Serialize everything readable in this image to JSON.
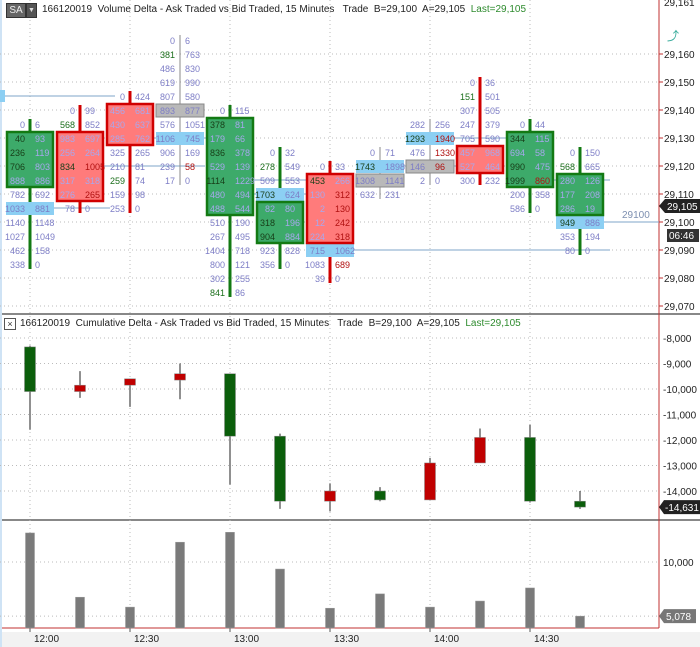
{
  "price_panel": {
    "instrument": "166120019",
    "title": "Volume Delta - Ask Traded vs Bid Traded, 15 Minutes",
    "trade_label": "Trade",
    "bid": "B=29,100",
    "ask": "A=29,105",
    "last": "Last=29,105",
    "sa_button": "SA",
    "dropdown_icon": "chevron-down-icon",
    "axis_labels": [
      "29,070",
      "29,080",
      "29,090",
      "29,100",
      "29,110",
      "29,120",
      "29,130",
      "29,140",
      "29,150",
      "29,160"
    ],
    "axis_top_partial": "29,161",
    "last_price_tag": "29,105",
    "timer_tag": "06:46",
    "level_label": "29100",
    "colors": {
      "green_fill": "#3daa6a",
      "green_border": "#137a13",
      "red_fill": "#ff7b7b",
      "red_border": "#d00000",
      "highlight": "#8ccff3",
      "gray": "#b9b9b9",
      "text": "#7d7dc6"
    },
    "bars": [
      {
        "time": "12:00",
        "type": "green",
        "body": [
          29130,
          29115
        ],
        "rows": [
          [
            29135,
            "0",
            "6",
            "n",
            "n"
          ],
          [
            29130,
            "40",
            "93",
            "d",
            "n"
          ],
          [
            29125,
            "236",
            "119",
            "d",
            "n"
          ],
          [
            29120,
            "706",
            "803",
            "d",
            "n"
          ],
          [
            29115,
            "888",
            "886",
            "n",
            "n"
          ],
          [
            29110,
            "782",
            "692",
            "n",
            "n"
          ],
          [
            29105,
            "1033",
            "881",
            "n",
            "n",
            "hl"
          ],
          [
            29100,
            "1140",
            "1148",
            "n",
            "n"
          ],
          [
            29095,
            "1027",
            "1049",
            "n",
            "n"
          ],
          [
            29090,
            "462",
            "158",
            "n",
            "n"
          ],
          [
            29085,
            "338",
            "0",
            "n",
            "n"
          ]
        ]
      },
      {
        "time": "12:15",
        "type": "red",
        "body": [
          29130,
          29110
        ],
        "rows": [
          [
            29140,
            "0",
            "99",
            "n",
            "n"
          ],
          [
            29135,
            "568",
            "852",
            "g",
            "n"
          ],
          [
            29130,
            "983",
            "697",
            "n",
            "n"
          ],
          [
            29125,
            "256",
            "264",
            "n",
            "n"
          ],
          [
            29120,
            "834",
            "1005",
            "d",
            "r"
          ],
          [
            29115,
            "317",
            "318",
            "n",
            "n"
          ],
          [
            29110,
            "276",
            "265",
            "n",
            "r"
          ],
          [
            29105,
            "78",
            "0",
            "n",
            "n"
          ]
        ]
      },
      {
        "time": "12:30",
        "type": "red",
        "body": [
          29140,
          29130
        ],
        "rows": [
          [
            29145,
            "0",
            "424",
            "n",
            "n"
          ],
          [
            29140,
            "456",
            "681",
            "n",
            "n"
          ],
          [
            29135,
            "430",
            "637",
            "n",
            "n"
          ],
          [
            29130,
            "285",
            "762",
            "n",
            "n"
          ],
          [
            29125,
            "325",
            "265",
            "n",
            "n"
          ],
          [
            29120,
            "210",
            "81",
            "n",
            "n"
          ],
          [
            29115,
            "259",
            "74",
            "g",
            "n"
          ],
          [
            29110,
            "159",
            "98",
            "n",
            "n"
          ],
          [
            29105,
            "253",
            "0",
            "n",
            "n"
          ]
        ]
      },
      {
        "time": "12:45",
        "type": "gray",
        "body": [
          29140,
          29140
        ],
        "rows": [
          [
            29165,
            "0",
            "6",
            "n",
            "n"
          ],
          [
            29160,
            "381",
            "763",
            "g",
            "n"
          ],
          [
            29155,
            "486",
            "830",
            "n",
            "n"
          ],
          [
            29150,
            "619",
            "990",
            "n",
            "n"
          ],
          [
            29145,
            "807",
            "580",
            "n",
            "n"
          ],
          [
            29140,
            "893",
            "877",
            "n",
            "n",
            "gy"
          ],
          [
            29135,
            "576",
            "1051",
            "n",
            "n"
          ],
          [
            29130,
            "1106",
            "745",
            "n",
            "n",
            "hl"
          ],
          [
            29125,
            "906",
            "169",
            "n",
            "n"
          ],
          [
            29120,
            "239",
            "58",
            "n",
            "r"
          ],
          [
            29115,
            "17",
            "0",
            "n",
            "n"
          ]
        ]
      },
      {
        "time": "13:00",
        "type": "green",
        "body": [
          29135,
          29105
        ],
        "rows": [
          [
            29140,
            "0",
            "115",
            "n",
            "n"
          ],
          [
            29135,
            "378",
            "81",
            "d",
            "n"
          ],
          [
            29130,
            "179",
            "66",
            "n",
            "n"
          ],
          [
            29125,
            "836",
            "378",
            "d",
            "n"
          ],
          [
            29120,
            "529",
            "139",
            "n",
            "n"
          ],
          [
            29115,
            "1114",
            "1229",
            "d",
            "n"
          ],
          [
            29110,
            "480",
            "494",
            "n",
            "n"
          ],
          [
            29105,
            "488",
            "544",
            "n",
            "n"
          ],
          [
            29100,
            "510",
            "190",
            "n",
            "n"
          ],
          [
            29095,
            "267",
            "495",
            "n",
            "n"
          ],
          [
            29090,
            "1404",
            "718",
            "n",
            "n"
          ],
          [
            29085,
            "800",
            "121",
            "n",
            "n"
          ],
          [
            29080,
            "302",
            "255",
            "n",
            "n"
          ],
          [
            29075,
            "841",
            "86",
            "g",
            "n"
          ]
        ]
      },
      {
        "time": "13:15",
        "type": "green",
        "body": [
          29105,
          29095
        ],
        "rows": [
          [
            29125,
            "0",
            "32",
            "n",
            "n"
          ],
          [
            29120,
            "278",
            "549",
            "g",
            "n"
          ],
          [
            29115,
            "509",
            "553",
            "n",
            "n"
          ],
          [
            29110,
            "1703",
            "624",
            "d",
            "n",
            "hl"
          ],
          [
            29105,
            "82",
            "80",
            "n",
            "n"
          ],
          [
            29100,
            "318",
            "196",
            "d",
            "n"
          ],
          [
            29095,
            "904",
            "884",
            "d",
            "n"
          ],
          [
            29090,
            "923",
            "828",
            "n",
            "n"
          ],
          [
            29085,
            "356",
            "0",
            "n",
            "n"
          ]
        ]
      },
      {
        "time": "13:30",
        "type": "red",
        "body": [
          29115,
          29095
        ],
        "rows": [
          [
            29120,
            "0",
            "33",
            "n",
            "n"
          ],
          [
            29115,
            "453",
            "266",
            "d",
            "n"
          ],
          [
            29110,
            "130",
            "312",
            "n",
            "r"
          ],
          [
            29105,
            "2",
            "130",
            "n",
            "r"
          ],
          [
            29100,
            "12",
            "242",
            "n",
            "r"
          ],
          [
            29095,
            "224",
            "318",
            "n",
            "r"
          ],
          [
            29090,
            "715",
            "1062",
            "n",
            "n",
            "hl"
          ],
          [
            29085,
            "1083",
            "689",
            "n",
            "r"
          ],
          [
            29080,
            "39",
            "0",
            "n",
            "n"
          ]
        ]
      },
      {
        "time": "13:45",
        "type": "gray",
        "body": [
          29115,
          29115
        ],
        "rows": [
          [
            29125,
            "0",
            "71",
            "n",
            "n"
          ],
          [
            29120,
            "1743",
            "1898",
            "d",
            "n",
            "hl"
          ],
          [
            29115,
            "1308",
            "1141",
            "n",
            "n",
            "gy"
          ],
          [
            29110,
            "632",
            "231",
            "n",
            "n"
          ]
        ]
      },
      {
        "time": "14:00",
        "type": "gray",
        "body": [
          29120,
          29120
        ],
        "rows": [
          [
            29135,
            "282",
            "256",
            "n",
            "n"
          ],
          [
            29130,
            "1293",
            "1940",
            "d",
            "r",
            "hl"
          ],
          [
            29125,
            "476",
            "1330",
            "n",
            "r"
          ],
          [
            29120,
            "146",
            "96",
            "n",
            "r",
            "gy"
          ],
          [
            29115,
            "2",
            "0",
            "n",
            "n"
          ]
        ]
      },
      {
        "time": "14:15",
        "type": "red",
        "body": [
          29125,
          29120
        ],
        "rows": [
          [
            29150,
            "0",
            "36",
            "n",
            "n"
          ],
          [
            29145,
            "151",
            "501",
            "g",
            "n"
          ],
          [
            29140,
            "307",
            "505",
            "n",
            "n"
          ],
          [
            29135,
            "247",
            "379",
            "n",
            "n"
          ],
          [
            29130,
            "705",
            "590",
            "n",
            "n"
          ],
          [
            29125,
            "457",
            "968",
            "n",
            "n"
          ],
          [
            29120,
            "527",
            "464",
            "n",
            "n"
          ],
          [
            29115,
            "300",
            "232",
            "n",
            "n"
          ]
        ]
      },
      {
        "time": "14:30",
        "type": "green",
        "body": [
          29130,
          29115
        ],
        "rows": [
          [
            29135,
            "0",
            "44",
            "n",
            "n"
          ],
          [
            29130,
            "344",
            "115",
            "d",
            "n"
          ],
          [
            29125,
            "694",
            "58",
            "n",
            "n"
          ],
          [
            29120,
            "990",
            "475",
            "d",
            "n"
          ],
          [
            29115,
            "1999",
            "860",
            "d",
            "r"
          ],
          [
            29110,
            "200",
            "358",
            "n",
            "n"
          ],
          [
            29105,
            "586",
            "0",
            "n",
            "n"
          ]
        ]
      },
      {
        "time": "14:45",
        "type": "green",
        "body": [
          29115,
          29105
        ],
        "rows": [
          [
            29125,
            "0",
            "150",
            "n",
            "n"
          ],
          [
            29120,
            "568",
            "665",
            "g",
            "n"
          ],
          [
            29115,
            "280",
            "126",
            "n",
            "n"
          ],
          [
            29110,
            "177",
            "208",
            "n",
            "n"
          ],
          [
            29105,
            "286",
            "19",
            "n",
            "n"
          ],
          [
            29100,
            "949",
            "886",
            "d",
            "n",
            "hl"
          ],
          [
            29095,
            "353",
            "194",
            "n",
            "n"
          ],
          [
            29090,
            "80",
            "0",
            "n",
            "n"
          ]
        ]
      }
    ]
  },
  "delta_panel": {
    "instrument": "166120019",
    "title": "Cumulative Delta - Ask Traded vs Bid Traded, 15 Minutes",
    "trade_label": "Trade",
    "bid": "B=29,100",
    "ask": "A=29,105",
    "last": "Last=29,105",
    "close_icon": "close-icon",
    "axis_labels": [
      "-8,000",
      "-9,000",
      "-10,000",
      "-11,000",
      "-12,000",
      "-13,000",
      "-14,000"
    ],
    "last_tag": "-14,631",
    "candles": [
      {
        "color": "green",
        "body": [
          -8350,
          -10100
        ],
        "high": -8300,
        "low": -11600
      },
      {
        "color": "red",
        "body": [
          -9850,
          -10100
        ],
        "high": -9300,
        "low": -10350
      },
      {
        "color": "red",
        "body": [
          -9600,
          -9850
        ],
        "high": -9600,
        "low": -10700
      },
      {
        "color": "red",
        "body": [
          -9400,
          -9650
        ],
        "high": -9000,
        "low": -10400
      },
      {
        "color": "green",
        "body": [
          -9400,
          -11850
        ],
        "high": -9400,
        "low": -13750
      },
      {
        "color": "green",
        "body": [
          -11850,
          -14400
        ],
        "high": -11750,
        "low": -14700
      },
      {
        "color": "red",
        "body": [
          -14000,
          -14400
        ],
        "high": -13700,
        "low": -14800
      },
      {
        "color": "green",
        "body": [
          -14000,
          -14350
        ],
        "high": -13850,
        "low": -14400
      },
      {
        "color": "red",
        "body": [
          -12900,
          -14350
        ],
        "high": -12700,
        "low": -14350
      },
      {
        "color": "red",
        "body": [
          -11900,
          -12900
        ],
        "high": -11550,
        "low": -12900
      },
      {
        "color": "green",
        "body": [
          -11900,
          -14400
        ],
        "high": -11400,
        "low": -14450
      },
      {
        "color": "green",
        "body": [
          -14400,
          -14631
        ],
        "high": -14000,
        "low": -14700
      }
    ]
  },
  "volume_panel": {
    "axis_labels": [
      "10,000"
    ],
    "last_tag": "5,078",
    "values": [
      12640,
      6800,
      5900,
      11800,
      12700,
      9360,
      5800,
      7100,
      5900,
      6450,
      7640,
      5078
    ]
  },
  "time_axis": [
    "12:00",
    "12:30",
    "13:00",
    "13:30",
    "14:00",
    "14:30"
  ]
}
